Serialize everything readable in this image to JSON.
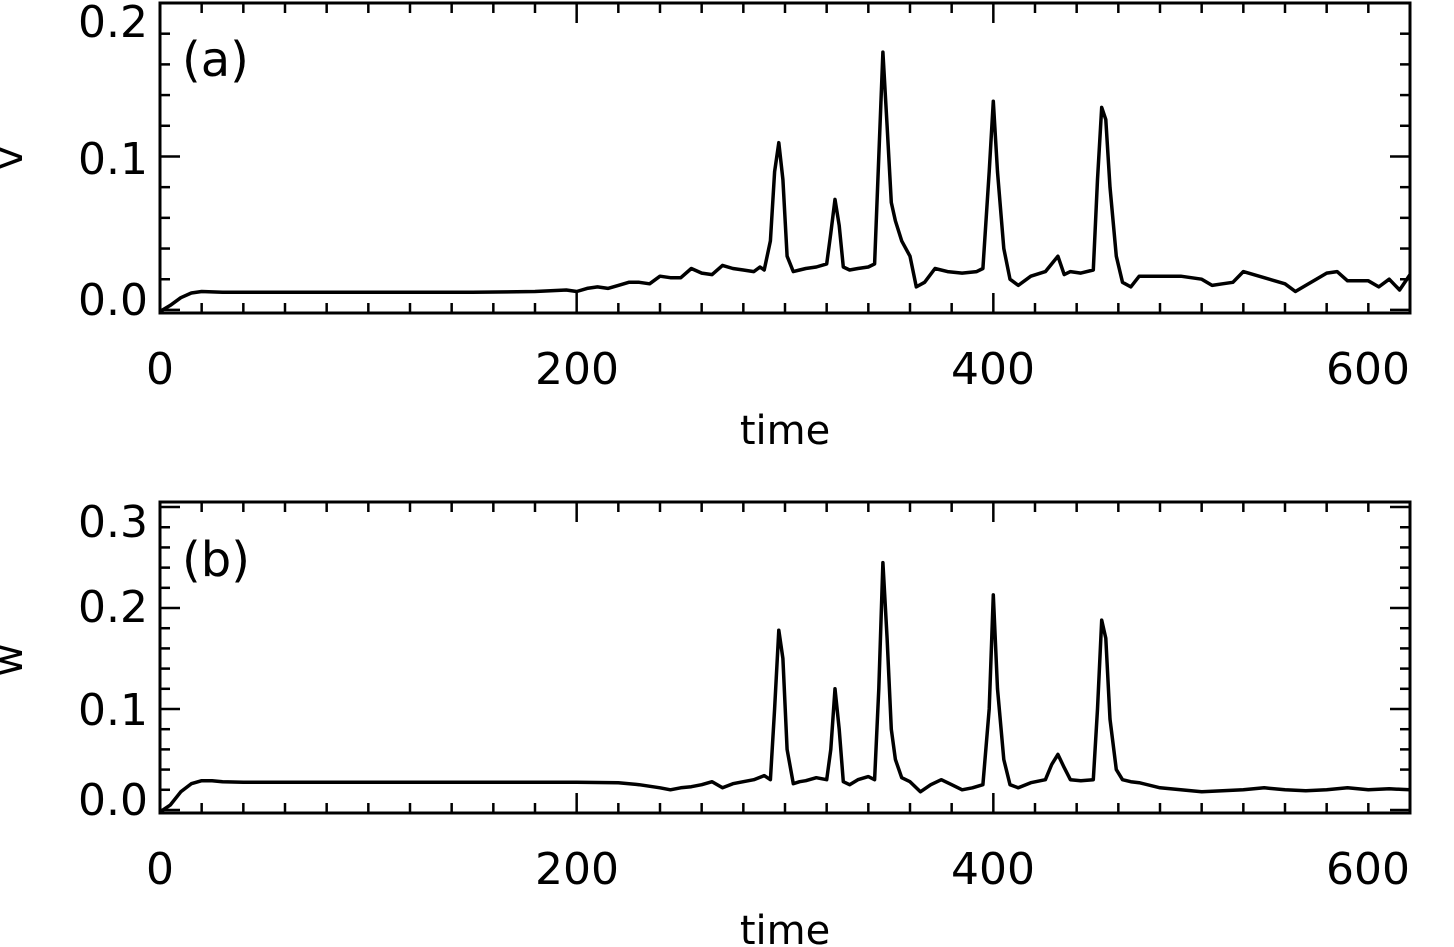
{
  "chart_data": [
    {
      "type": "line",
      "panel_label": "(a)",
      "xlabel": "time",
      "ylabel": "v",
      "xlim": [
        0,
        600
      ],
      "ylim": [
        -0.002,
        0.2
      ],
      "xticks": [
        0,
        200,
        400,
        600
      ],
      "xtick_labels": [
        "0",
        "200",
        "400",
        "600"
      ],
      "yticks": [
        0.0,
        0.1,
        0.2
      ],
      "ytick_labels": [
        "0.0",
        "0.1",
        "0.2"
      ],
      "grid": false,
      "series": [
        {
          "x": [
            0,
            5,
            10,
            15,
            20,
            30,
            50,
            100,
            150,
            180,
            195,
            200,
            205,
            210,
            215,
            220,
            225,
            230,
            235,
            240,
            245,
            250,
            255,
            260,
            265,
            270,
            275,
            280,
            285,
            288,
            290,
            293,
            295,
            297,
            299,
            301,
            304,
            307,
            310,
            315,
            320,
            322,
            324,
            326,
            328,
            331,
            335,
            340,
            343,
            345,
            347,
            349,
            351,
            353,
            356,
            360,
            363,
            367,
            372,
            378,
            385,
            392,
            395,
            398,
            400,
            402,
            405,
            408,
            412,
            418,
            425,
            428,
            431,
            434,
            437,
            442,
            448,
            450,
            452,
            454,
            456,
            459,
            462,
            466,
            470,
            480,
            490,
            500,
            505,
            510,
            515,
            520,
            530,
            540,
            545,
            550,
            555,
            560,
            565,
            570,
            580,
            585,
            590,
            595,
            600
          ],
          "y": [
            -0.001,
            0.003,
            0.008,
            0.011,
            0.012,
            0.0115,
            0.0115,
            0.0115,
            0.0115,
            0.012,
            0.013,
            0.012,
            0.014,
            0.015,
            0.014,
            0.016,
            0.018,
            0.018,
            0.017,
            0.022,
            0.021,
            0.021,
            0.027,
            0.024,
            0.023,
            0.029,
            0.027,
            0.026,
            0.025,
            0.028,
            0.026,
            0.045,
            0.09,
            0.109,
            0.085,
            0.035,
            0.025,
            0.026,
            0.027,
            0.028,
            0.03,
            0.05,
            0.072,
            0.055,
            0.028,
            0.026,
            0.027,
            0.028,
            0.03,
            0.1,
            0.168,
            0.12,
            0.07,
            0.058,
            0.045,
            0.035,
            0.015,
            0.018,
            0.027,
            0.025,
            0.024,
            0.025,
            0.027,
            0.09,
            0.136,
            0.09,
            0.04,
            0.02,
            0.016,
            0.022,
            0.025,
            0.03,
            0.035,
            0.023,
            0.025,
            0.024,
            0.026,
            0.085,
            0.132,
            0.124,
            0.08,
            0.035,
            0.018,
            0.015,
            0.022,
            0.022,
            0.022,
            0.02,
            0.016,
            0.017,
            0.018,
            0.025,
            0.021,
            0.017,
            0.012,
            0.016,
            0.02,
            0.024,
            0.025,
            0.019,
            0.019,
            0.015,
            0.02,
            0.013,
            0.023
          ]
        }
      ]
    },
    {
      "type": "line",
      "panel_label": "(b)",
      "xlabel": "time",
      "ylabel": "w",
      "xlim": [
        0,
        600
      ],
      "ylim": [
        -0.003,
        0.305
      ],
      "xticks": [
        0,
        200,
        400,
        600
      ],
      "xtick_labels": [
        "0",
        "200",
        "400",
        "600"
      ],
      "yticks": [
        0.0,
        0.1,
        0.2,
        0.3
      ],
      "ytick_labels": [
        "0.0",
        "0.1",
        "0.2",
        "0.3"
      ],
      "grid": false,
      "series": [
        {
          "x": [
            0,
            5,
            10,
            15,
            20,
            25,
            30,
            40,
            50,
            100,
            150,
            200,
            220,
            230,
            240,
            245,
            250,
            255,
            260,
            265,
            270,
            275,
            280,
            285,
            290,
            293,
            295,
            297,
            299,
            301,
            304,
            307,
            310,
            315,
            320,
            322,
            324,
            326,
            328,
            331,
            335,
            340,
            343,
            345,
            347,
            349,
            351,
            353,
            356,
            360,
            365,
            370,
            375,
            380,
            385,
            390,
            395,
            398,
            400,
            402,
            405,
            408,
            412,
            418,
            425,
            428,
            431,
            434,
            437,
            442,
            448,
            450,
            452,
            454,
            456,
            459,
            462,
            466,
            470,
            480,
            490,
            500,
            510,
            520,
            530,
            540,
            550,
            560,
            570,
            580,
            590,
            600
          ],
          "y": [
            -0.002,
            0.005,
            0.018,
            0.026,
            0.029,
            0.029,
            0.028,
            0.0275,
            0.0275,
            0.0275,
            0.0275,
            0.0275,
            0.027,
            0.025,
            0.022,
            0.02,
            0.022,
            0.023,
            0.025,
            0.028,
            0.022,
            0.026,
            0.028,
            0.03,
            0.034,
            0.03,
            0.1,
            0.178,
            0.15,
            0.06,
            0.026,
            0.028,
            0.029,
            0.032,
            0.03,
            0.06,
            0.12,
            0.08,
            0.028,
            0.025,
            0.03,
            0.033,
            0.03,
            0.12,
            0.245,
            0.17,
            0.08,
            0.05,
            0.032,
            0.028,
            0.018,
            0.025,
            0.03,
            0.025,
            0.02,
            0.022,
            0.025,
            0.1,
            0.213,
            0.12,
            0.05,
            0.025,
            0.022,
            0.027,
            0.03,
            0.045,
            0.055,
            0.042,
            0.03,
            0.029,
            0.03,
            0.1,
            0.188,
            0.17,
            0.09,
            0.04,
            0.03,
            0.028,
            0.027,
            0.022,
            0.02,
            0.018,
            0.019,
            0.02,
            0.022,
            0.02,
            0.019,
            0.02,
            0.022,
            0.02,
            0.021,
            0.02
          ]
        }
      ]
    }
  ]
}
